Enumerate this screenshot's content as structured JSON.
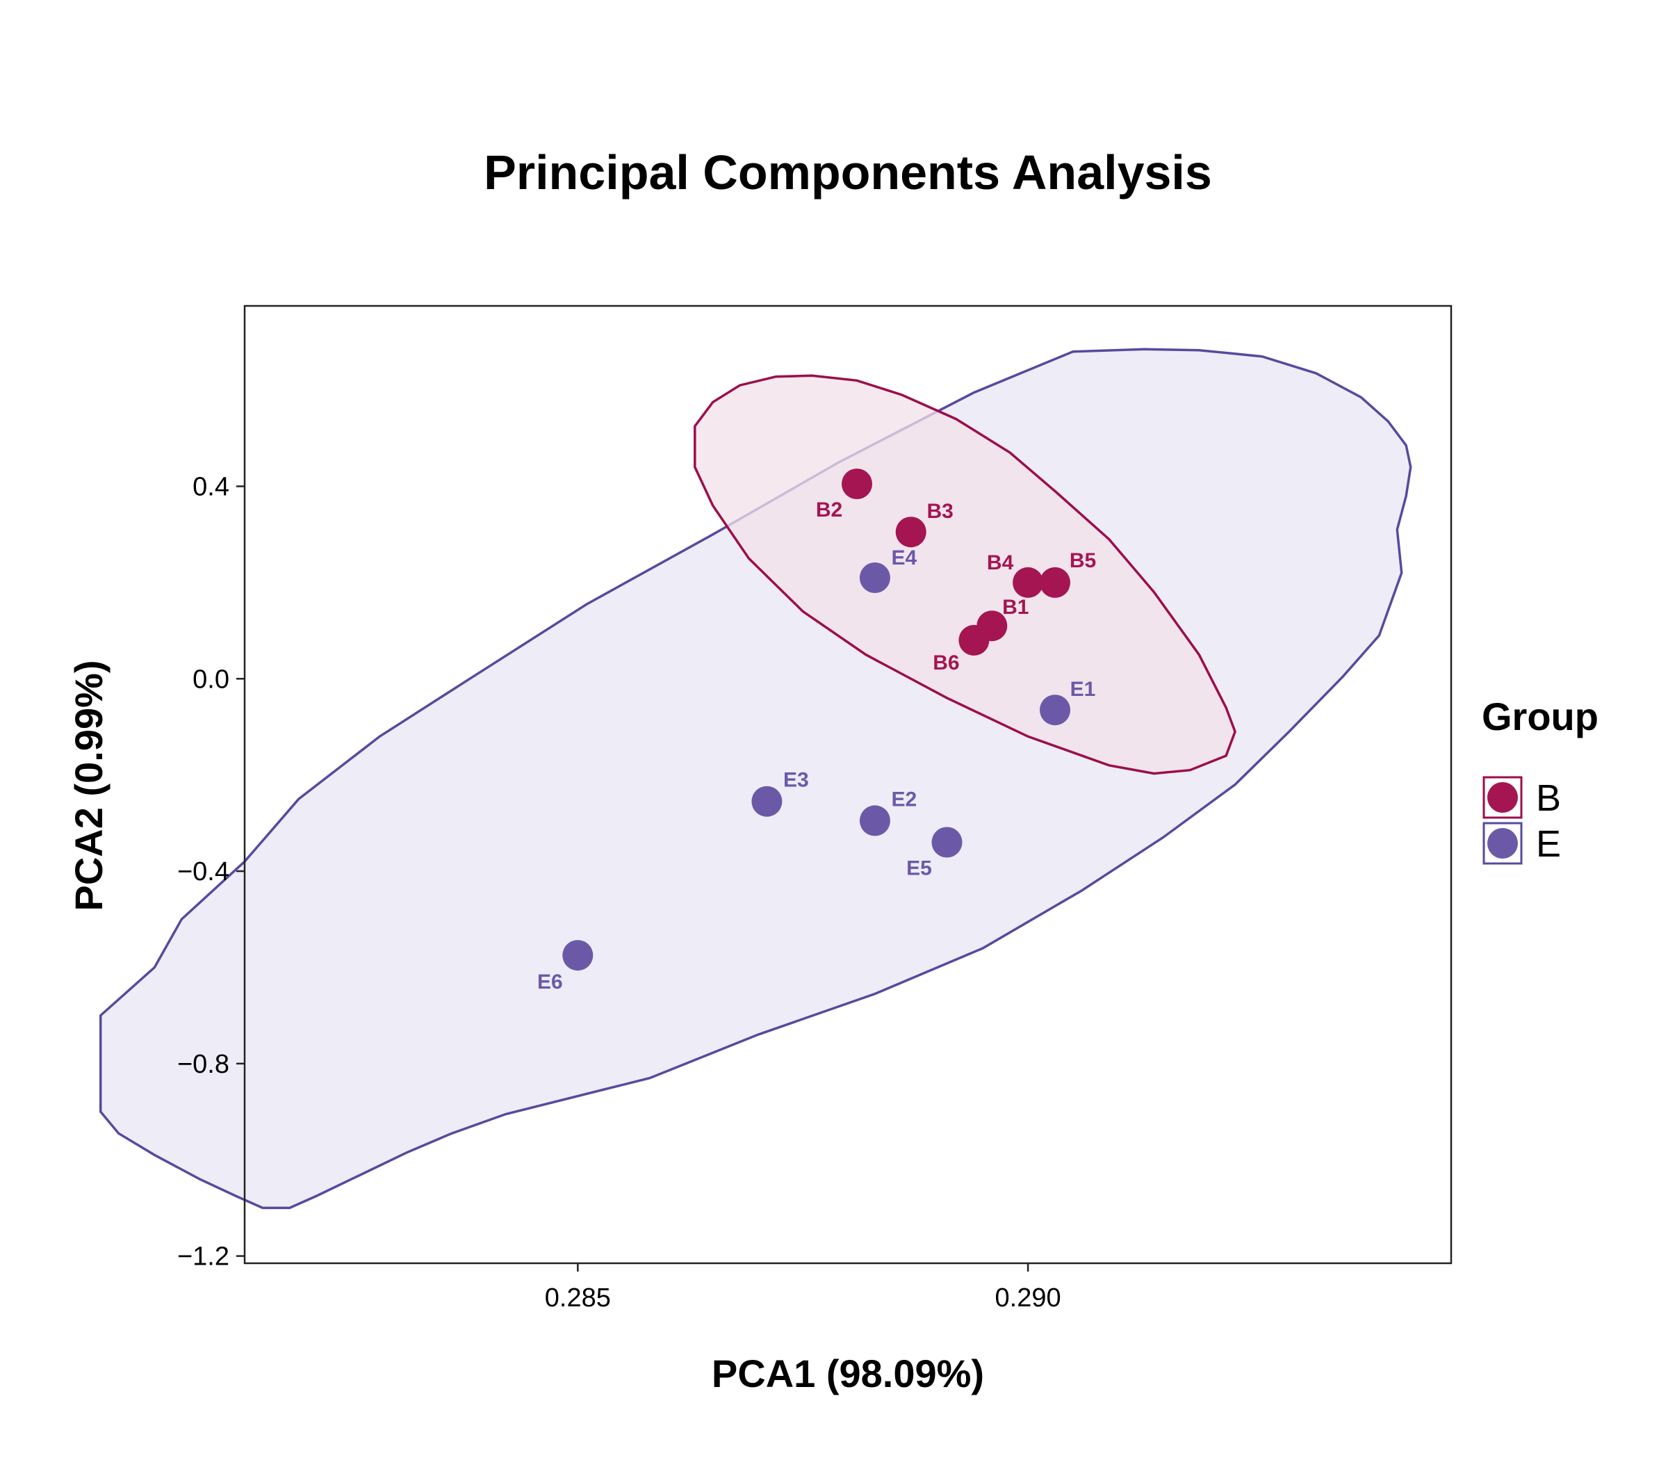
{
  "chart_data": {
    "type": "scatter",
    "title": "Principal Components Analysis",
    "xlabel": "PCA1 (98.09%)",
    "ylabel": "PCA2 (0.99%)",
    "xlim": [
      0.2813,
      0.2947
    ],
    "ylim": [
      -1.215,
      0.775
    ],
    "xticks": [
      {
        "value": 0.285,
        "label": "0.285"
      },
      {
        "value": 0.29,
        "label": "0.290"
      }
    ],
    "yticks": [
      {
        "value": 0.4,
        "label": "0.4"
      },
      {
        "value": 0.0,
        "label": "0.0"
      },
      {
        "value": -0.4,
        "label": "−0.4"
      },
      {
        "value": -0.8,
        "label": "−0.8"
      },
      {
        "value": -1.2,
        "label": "−1.2"
      }
    ],
    "grid": false,
    "legend": {
      "title": "Group",
      "position": "right"
    },
    "series": [
      {
        "name": "B",
        "color": "#A51552",
        "ellipse_color": "#9C0E4B",
        "ellipse_fill": "#F2E1EA",
        "points": [
          {
            "label": "B1",
            "x": 0.2896,
            "y": 0.11
          },
          {
            "label": "B2",
            "x": 0.2881,
            "y": 0.405
          },
          {
            "label": "B3",
            "x": 0.2887,
            "y": 0.305
          },
          {
            "label": "B4",
            "x": 0.29,
            "y": 0.2
          },
          {
            "label": "B5",
            "x": 0.2903,
            "y": 0.2
          },
          {
            "label": "B6",
            "x": 0.2894,
            "y": 0.08
          }
        ],
        "ellipse": [
          [
            0.2863,
            0.525
          ],
          [
            0.2865,
            0.575
          ],
          [
            0.2868,
            0.61
          ],
          [
            0.2872,
            0.628
          ],
          [
            0.2876,
            0.63
          ],
          [
            0.2881,
            0.62
          ],
          [
            0.2886,
            0.59
          ],
          [
            0.2892,
            0.54
          ],
          [
            0.2898,
            0.47
          ],
          [
            0.2903,
            0.39
          ],
          [
            0.2909,
            0.29
          ],
          [
            0.2914,
            0.18
          ],
          [
            0.2919,
            0.05
          ],
          [
            0.2922,
            -0.06
          ],
          [
            0.2923,
            -0.11
          ],
          [
            0.2922,
            -0.16
          ],
          [
            0.2918,
            -0.19
          ],
          [
            0.2914,
            -0.197
          ],
          [
            0.2909,
            -0.18
          ],
          [
            0.29,
            -0.12
          ],
          [
            0.2891,
            -0.04
          ],
          [
            0.2882,
            0.05
          ],
          [
            0.2875,
            0.14
          ],
          [
            0.2869,
            0.25
          ],
          [
            0.2865,
            0.36
          ],
          [
            0.2863,
            0.44
          ],
          [
            0.2863,
            0.525
          ]
        ]
      },
      {
        "name": "E",
        "color": "#6B59A8",
        "ellipse_color": "#574A9E",
        "ellipse_fill": "#EEECF6",
        "points": [
          {
            "label": "E1",
            "x": 0.2903,
            "y": -0.065
          },
          {
            "label": "E2",
            "x": 0.2883,
            "y": -0.295
          },
          {
            "label": "E3",
            "x": 0.2871,
            "y": -0.255
          },
          {
            "label": "E4",
            "x": 0.2883,
            "y": 0.21
          },
          {
            "label": "E5",
            "x": 0.2891,
            "y": -0.34
          },
          {
            "label": "E6",
            "x": 0.285,
            "y": -0.575
          }
        ],
        "ellipse": [
          [
            0.2905,
            0.68
          ],
          [
            0.2913,
            0.685
          ],
          [
            0.2919,
            0.683
          ],
          [
            0.2926,
            0.67
          ],
          [
            0.2932,
            0.635
          ],
          [
            0.2937,
            0.585
          ],
          [
            0.294,
            0.535
          ],
          [
            0.2941,
            0.51
          ],
          [
            0.2942,
            0.485
          ],
          [
            0.29425,
            0.44
          ],
          [
            0.2942,
            0.38
          ],
          [
            0.2941,
            0.31
          ],
          [
            0.29415,
            0.22
          ],
          [
            0.2939,
            0.09
          ],
          [
            0.2935,
            0.005
          ],
          [
            0.2929,
            -0.11
          ],
          [
            0.2923,
            -0.22
          ],
          [
            0.2915,
            -0.33
          ],
          [
            0.2906,
            -0.44
          ],
          [
            0.2895,
            -0.56
          ],
          [
            0.2883,
            -0.655
          ],
          [
            0.287,
            -0.74
          ],
          [
            0.2858,
            -0.83
          ],
          [
            0.2842,
            -0.905
          ],
          [
            0.2836,
            -0.945
          ],
          [
            0.2831,
            -0.985
          ],
          [
            0.2826,
            -1.03
          ],
          [
            0.2821,
            -1.075
          ],
          [
            0.2818,
            -1.1
          ],
          [
            0.2815,
            -1.1
          ],
          [
            0.2812,
            -1.075
          ],
          [
            0.2808,
            -1.04
          ],
          [
            0.2803,
            -0.99
          ],
          [
            0.2799,
            -0.945
          ],
          [
            0.2797,
            -0.9
          ],
          [
            0.2797,
            -0.8
          ],
          [
            0.2797,
            -0.76
          ],
          [
            0.2797,
            -0.7
          ],
          [
            0.2803,
            -0.6
          ],
          [
            0.2806,
            -0.5
          ],
          [
            0.2813,
            -0.38
          ],
          [
            0.2819,
            -0.25
          ],
          [
            0.2828,
            -0.12
          ],
          [
            0.2838,
            0.0
          ],
          [
            0.2851,
            0.155
          ],
          [
            0.2865,
            0.3
          ],
          [
            0.2879,
            0.45
          ],
          [
            0.2894,
            0.595
          ],
          [
            0.2905,
            0.68
          ]
        ]
      }
    ]
  }
}
